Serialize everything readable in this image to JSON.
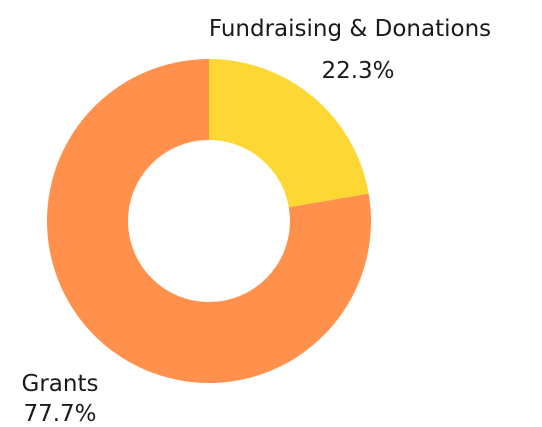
{
  "chart_data": {
    "type": "pie",
    "variant": "donut",
    "title": "",
    "slices": [
      {
        "label": "Fundraising & Donations",
        "value": 22.3,
        "value_label": "22.3%",
        "color": "#FDD835"
      },
      {
        "label": "Grants",
        "value": 77.7,
        "value_label": "77.7%",
        "color": "#FF914D"
      }
    ],
    "start_angle_deg": 0,
    "direction": "clockwise",
    "hole_color": "#ffffff"
  }
}
